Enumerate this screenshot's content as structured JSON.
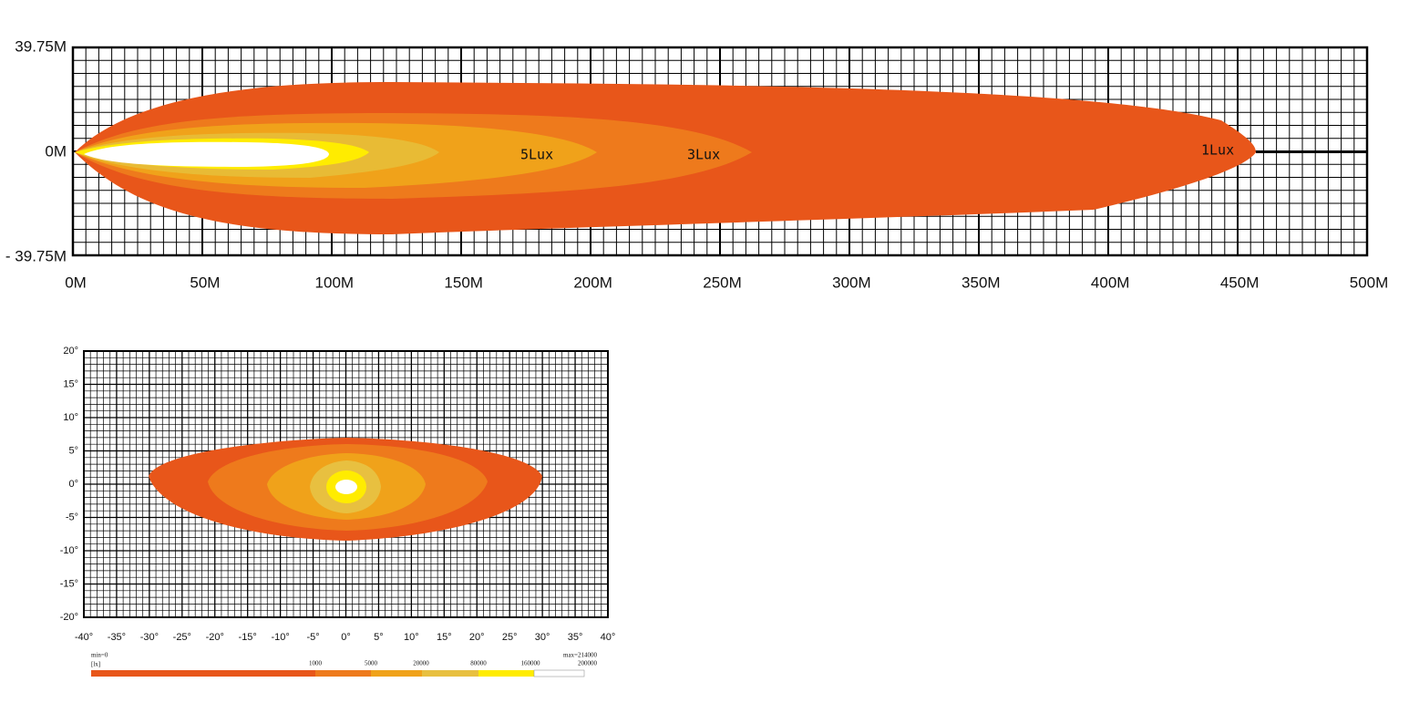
{
  "top_chart": {
    "y_labels": [
      "39.75M",
      "0M",
      "- 39.75M"
    ],
    "x_labels": [
      "0M",
      "50M",
      "100M",
      "150M",
      "200M",
      "250M",
      "300M",
      "350M",
      "400M",
      "450M",
      "500M"
    ],
    "annotations": [
      "5Lux",
      "3Lux",
      "1Lux"
    ]
  },
  "bottom_chart": {
    "y_labels": [
      "20°",
      "15°",
      "10°",
      "5°",
      "0°",
      "-5°",
      "-10°",
      "-15°",
      "-20°"
    ],
    "x_labels": [
      "-40°",
      "-35°",
      "-30°",
      "-25°",
      "-20°",
      "-15°",
      "-10°",
      "-5°",
      "0°",
      "5°",
      "10°",
      "15°",
      "20°",
      "25°",
      "30°",
      "35°",
      "40°"
    ]
  },
  "legend": {
    "min": "min=0",
    "unit": "[lx]",
    "levels": [
      "1000",
      "5000",
      "20000",
      "80000",
      "160000"
    ],
    "max": "max=214000",
    "end": "200000"
  }
}
